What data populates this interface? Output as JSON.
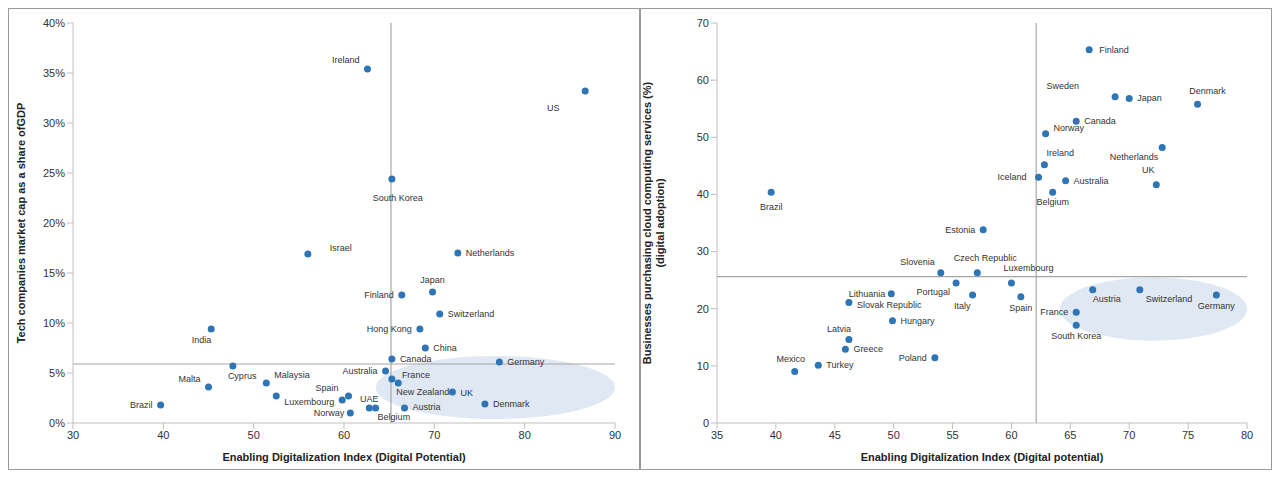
{
  "chart_data": [
    {
      "type": "scatter",
      "x_label": "Enabling Digitalization Index (Digital Potential)",
      "y_label": [
        "Tech companies market cap as a share ofGDP"
      ],
      "color": "#2e75b6",
      "grid": false,
      "labels": [
        "Ireland",
        "US",
        "South Korea",
        "Israel",
        "Netherlands",
        "Japan",
        "Finland",
        "Switzerland",
        "India",
        "Hong Kong",
        "China",
        "Canada",
        "Germany",
        "Cyprus",
        "Malaysia",
        "Australia",
        "France",
        "New Zealand",
        "Malta",
        "Spain",
        "Luxembourg",
        "UAE",
        "Belgium",
        "Norway",
        "Austria",
        "UK",
        "Denmark",
        "Brazil",
        null
      ],
      "x": [
        62.6,
        86.7,
        65.3,
        56.0,
        72.6,
        69.8,
        66.4,
        70.6,
        45.3,
        68.4,
        69.0,
        65.3,
        77.2,
        47.7,
        51.4,
        64.6,
        65.3,
        66.0,
        45.0,
        60.5,
        59.8,
        62.8,
        63.5,
        60.7,
        66.7,
        72.0,
        75.6,
        39.7,
        52.5
      ],
      "y": [
        35.4,
        33.2,
        24.4,
        16.9,
        17.0,
        13.1,
        12.8,
        10.9,
        9.4,
        9.4,
        7.5,
        6.4,
        6.1,
        5.7,
        4.0,
        5.2,
        4.4,
        4.0,
        3.6,
        2.7,
        2.3,
        1.5,
        1.5,
        1.0,
        1.5,
        3.1,
        1.9,
        1.8,
        2.7
      ],
      "xlim": [
        30,
        90
      ],
      "xticks": [
        30,
        40,
        50,
        60,
        70,
        80,
        90
      ],
      "ylim": [
        0,
        40
      ],
      "yticks": [
        {
          "value": 0,
          "label": "0%"
        },
        {
          "value": 5,
          "label": "5%"
        },
        {
          "value": 10,
          "label": "10%"
        },
        {
          "value": 15,
          "label": "15%"
        },
        {
          "value": 20,
          "label": "20%"
        },
        {
          "value": 25,
          "label": "25%"
        },
        {
          "value": 30,
          "label": "30%"
        },
        {
          "value": 35,
          "label": "35%"
        },
        {
          "value": 40,
          "label": "40%"
        }
      ],
      "quadrant_lines": {
        "x": 65.2,
        "y": 5.9
      },
      "highlight": {
        "x": [
          63.5,
          90
        ],
        "y": [
          0.4,
          6.7
        ]
      }
    },
    {
      "type": "scatter",
      "x_label": "Enabling Digitalization Index (Digital potential)",
      "y_label": [
        "Businesses purchasing cloud computing services (%)",
        "(digital adoption)"
      ],
      "color": "#2e75b6",
      "grid": false,
      "labels": [
        "Finland",
        "Sweden",
        "Japan",
        "Denmark",
        "Canada",
        "Norway",
        "Netherlands",
        "Ireland",
        "Iceland",
        "Australia",
        "UK",
        "Belgium",
        "Brazil",
        "Estonia",
        "Slovenia",
        "Czech Republic",
        "Portugal",
        "Luxembourg",
        "Lithuania",
        "Italy",
        "Spain",
        "Austria",
        "Switzerland",
        "Germany",
        "Slovak Republic",
        "France",
        "South Korea",
        "Hungary",
        "Latvia",
        "Greece",
        "Poland",
        "Turkey",
        "Mexico"
      ],
      "x": [
        66.6,
        68.8,
        70.0,
        75.8,
        65.5,
        62.9,
        72.8,
        62.8,
        62.3,
        64.6,
        72.3,
        63.5,
        39.6,
        57.6,
        54.0,
        57.1,
        55.3,
        60.0,
        49.8,
        56.7,
        60.8,
        66.9,
        70.9,
        77.4,
        46.2,
        65.5,
        65.5,
        49.9,
        46.2,
        45.9,
        53.5,
        43.6,
        41.6
      ],
      "y": [
        65.3,
        57.1,
        56.8,
        55.8,
        52.8,
        50.6,
        48.2,
        45.2,
        43.0,
        42.4,
        41.7,
        40.4,
        40.4,
        33.8,
        26.3,
        26.3,
        24.5,
        24.5,
        22.6,
        22.4,
        22.1,
        23.3,
        23.3,
        22.4,
        21.1,
        19.4,
        17.1,
        17.9,
        14.6,
        12.9,
        11.4,
        10.1,
        9.0
      ],
      "xlim": [
        35,
        80
      ],
      "xticks": [
        35,
        40,
        45,
        50,
        55,
        60,
        65,
        70,
        75,
        80
      ],
      "ylim": [
        0,
        70
      ],
      "yticks": [
        0,
        10,
        20,
        30,
        40,
        50,
        60,
        70
      ],
      "quadrant_lines": {
        "x": 62.1,
        "y": 25.6
      },
      "highlight": {
        "x": [
          64.1,
          80
        ],
        "y": [
          14.4,
          25.5
        ]
      }
    }
  ]
}
